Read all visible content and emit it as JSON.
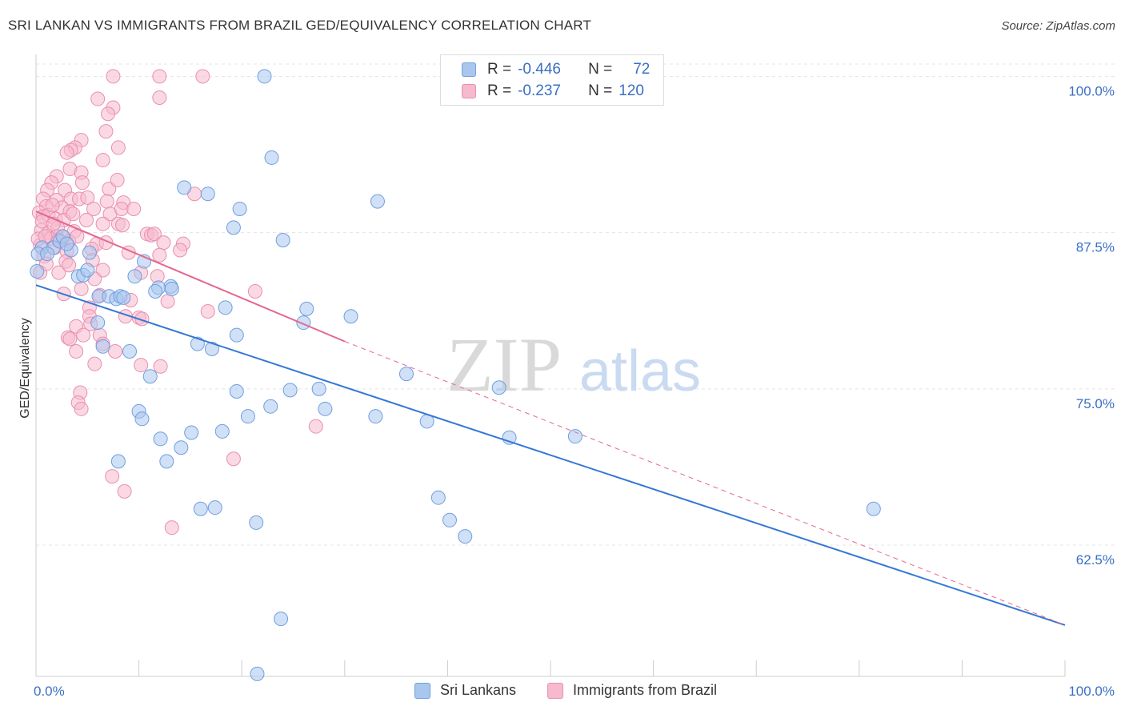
{
  "title": "SRI LANKAN VS IMMIGRANTS FROM BRAZIL GED/EQUIVALENCY CORRELATION CHART",
  "source": "Source: ZipAtlas.com",
  "watermark": {
    "zip": "ZIP",
    "atlas": "atlas"
  },
  "legend": {
    "series1": {
      "r_label": "R =",
      "r_value": "-0.446",
      "n_label": "N =",
      "n_value": "72"
    },
    "series2": {
      "r_label": "R =",
      "r_value": "-0.237",
      "n_label": "N =",
      "n_value": "120"
    }
  },
  "colors": {
    "blue_fill": "#a9c7ee",
    "blue_stroke": "#6f9fe0",
    "blue_line": "#3478d4",
    "pink_fill": "#f6b9cd",
    "pink_stroke": "#ea8fae",
    "pink_line": "#e4678f",
    "grid": "#e4e4e4",
    "tick_label": "#3a6fc4"
  },
  "chart_data": {
    "type": "scatter",
    "title": "SRI LANKAN VS IMMIGRANTS FROM BRAZIL GED/EQUIVALENCY CORRELATION CHART",
    "xlabel": "",
    "ylabel": "GED/Equivalency",
    "xlim": [
      0,
      100
    ],
    "ylim": [
      52.0,
      101.5
    ],
    "x_tick_labels": [
      "0.0%",
      "100.0%"
    ],
    "y_ticks": [
      62.5,
      75.0,
      87.5,
      100.0
    ],
    "y_tick_labels": [
      "62.5%",
      "75.0%",
      "87.5%",
      "100.0%"
    ],
    "grid": true,
    "legend_position": "bottom",
    "series": [
      {
        "name": "Sri Lankans",
        "color": "#a9c7ee",
        "r": -0.446,
        "n": 72,
        "trend": {
          "x0": 0,
          "y0": 83.3,
          "x1": 100,
          "y1": 56.1
        },
        "points": [
          [
            22.2,
            100.0
          ],
          [
            22.9,
            93.5
          ],
          [
            14.4,
            91.1
          ],
          [
            16.7,
            90.6
          ],
          [
            19.8,
            89.4
          ],
          [
            33.2,
            90.0
          ],
          [
            19.2,
            87.9
          ],
          [
            24.0,
            86.9
          ],
          [
            0.6,
            86.3
          ],
          [
            1.7,
            86.3
          ],
          [
            2.3,
            86.8
          ],
          [
            2.6,
            87.2
          ],
          [
            3.4,
            86.1
          ],
          [
            5.2,
            85.9
          ],
          [
            10.5,
            85.2
          ],
          [
            9.6,
            84.0
          ],
          [
            4.1,
            84.0
          ],
          [
            4.6,
            84.1
          ],
          [
            5.0,
            84.5
          ],
          [
            13.1,
            83.2
          ],
          [
            11.9,
            83.1
          ],
          [
            11.6,
            82.8
          ],
          [
            6.1,
            82.4
          ],
          [
            7.1,
            82.4
          ],
          [
            7.8,
            82.2
          ],
          [
            8.2,
            82.4
          ],
          [
            8.5,
            82.3
          ],
          [
            18.4,
            81.5
          ],
          [
            26.3,
            81.4
          ],
          [
            30.6,
            80.8
          ],
          [
            26.0,
            80.3
          ],
          [
            6.0,
            80.3
          ],
          [
            19.5,
            79.3
          ],
          [
            15.7,
            78.6
          ],
          [
            17.1,
            78.2
          ],
          [
            6.5,
            78.4
          ],
          [
            9.1,
            78.0
          ],
          [
            36.0,
            76.2
          ],
          [
            11.1,
            76.0
          ],
          [
            45.0,
            75.1
          ],
          [
            19.5,
            74.8
          ],
          [
            24.7,
            74.9
          ],
          [
            27.5,
            75.0
          ],
          [
            22.8,
            73.6
          ],
          [
            28.1,
            73.4
          ],
          [
            10.0,
            73.2
          ],
          [
            20.6,
            72.8
          ],
          [
            33.0,
            72.8
          ],
          [
            10.3,
            72.6
          ],
          [
            38.0,
            72.4
          ],
          [
            15.1,
            71.5
          ],
          [
            18.1,
            71.6
          ],
          [
            12.1,
            71.0
          ],
          [
            46.0,
            71.1
          ],
          [
            52.4,
            71.2
          ],
          [
            14.1,
            70.3
          ],
          [
            8.0,
            69.2
          ],
          [
            12.7,
            69.2
          ],
          [
            81.4,
            65.4
          ],
          [
            39.1,
            66.3
          ],
          [
            16.0,
            65.4
          ],
          [
            17.4,
            65.5
          ],
          [
            40.2,
            64.5
          ],
          [
            21.4,
            64.3
          ],
          [
            41.7,
            63.2
          ],
          [
            23.8,
            56.6
          ],
          [
            21.5,
            52.2
          ],
          [
            0.2,
            85.8
          ],
          [
            1.1,
            85.8
          ],
          [
            3.0,
            86.6
          ],
          [
            0.1,
            84.4
          ],
          [
            13.2,
            83.0
          ]
        ]
      },
      {
        "name": "Immigrants from Brazil",
        "color": "#f6b9cd",
        "r": -0.237,
        "n": 120,
        "trend": {
          "x0": 0,
          "y0": 89.2,
          "x1": 30,
          "y1": 78.8
        },
        "trend_dashed": {
          "x0": 30,
          "y0": 78.8,
          "x1": 100,
          "y1": 56.1
        },
        "points": [
          [
            7.5,
            100.0
          ],
          [
            12.0,
            100.0
          ],
          [
            16.2,
            100.0
          ],
          [
            6.0,
            98.2
          ],
          [
            12.0,
            98.3
          ],
          [
            7.5,
            97.5
          ],
          [
            7.0,
            97.0
          ],
          [
            6.8,
            95.6
          ],
          [
            8.0,
            94.3
          ],
          [
            4.4,
            94.9
          ],
          [
            3.8,
            94.3
          ],
          [
            3.4,
            94.1
          ],
          [
            3.0,
            93.9
          ],
          [
            6.5,
            93.3
          ],
          [
            3.3,
            92.6
          ],
          [
            4.4,
            92.3
          ],
          [
            2.0,
            92.0
          ],
          [
            1.5,
            91.5
          ],
          [
            4.5,
            91.5
          ],
          [
            1.1,
            90.9
          ],
          [
            2.8,
            90.9
          ],
          [
            7.1,
            91.0
          ],
          [
            0.7,
            90.2
          ],
          [
            2.0,
            90.1
          ],
          [
            3.4,
            90.2
          ],
          [
            4.2,
            90.2
          ],
          [
            5.0,
            90.3
          ],
          [
            6.9,
            90.0
          ],
          [
            8.5,
            89.9
          ],
          [
            1.0,
            89.6
          ],
          [
            2.5,
            89.5
          ],
          [
            3.3,
            89.2
          ],
          [
            5.6,
            89.4
          ],
          [
            7.2,
            89.0
          ],
          [
            8.3,
            89.4
          ],
          [
            0.3,
            89.1
          ],
          [
            0.7,
            88.8
          ],
          [
            1.2,
            88.9
          ],
          [
            1.9,
            88.6
          ],
          [
            2.7,
            88.5
          ],
          [
            4.9,
            88.5
          ],
          [
            6.5,
            88.2
          ],
          [
            8.0,
            88.2
          ],
          [
            8.4,
            88.1
          ],
          [
            0.5,
            87.7
          ],
          [
            1.2,
            87.5
          ],
          [
            2.0,
            87.2
          ],
          [
            2.7,
            87.1
          ],
          [
            3.7,
            87.6
          ],
          [
            10.8,
            87.4
          ],
          [
            11.2,
            87.3
          ],
          [
            11.5,
            87.4
          ],
          [
            1.4,
            87.0
          ],
          [
            3.2,
            86.8
          ],
          [
            5.9,
            86.6
          ],
          [
            6.8,
            86.7
          ],
          [
            14.3,
            86.6
          ],
          [
            12.4,
            86.7
          ],
          [
            0.4,
            86.5
          ],
          [
            1.8,
            86.3
          ],
          [
            3.0,
            86.0
          ],
          [
            5.4,
            86.2
          ],
          [
            14.0,
            86.1
          ],
          [
            9.0,
            85.9
          ],
          [
            12.0,
            85.7
          ],
          [
            0.8,
            85.6
          ],
          [
            2.9,
            85.2
          ],
          [
            6.5,
            84.5
          ],
          [
            10.2,
            84.3
          ],
          [
            11.8,
            84.0
          ],
          [
            0.4,
            84.3
          ],
          [
            2.2,
            84.3
          ],
          [
            5.7,
            83.8
          ],
          [
            4.4,
            83.0
          ],
          [
            21.3,
            82.8
          ],
          [
            2.7,
            82.6
          ],
          [
            6.2,
            82.5
          ],
          [
            9.2,
            82.1
          ],
          [
            12.8,
            82.0
          ],
          [
            5.2,
            81.5
          ],
          [
            16.7,
            81.2
          ],
          [
            5.2,
            80.8
          ],
          [
            8.7,
            80.8
          ],
          [
            10.0,
            80.7
          ],
          [
            10.3,
            80.6
          ],
          [
            5.3,
            80.2
          ],
          [
            3.9,
            80.0
          ],
          [
            4.6,
            79.3
          ],
          [
            6.2,
            79.3
          ],
          [
            3.1,
            79.1
          ],
          [
            3.3,
            79.0
          ],
          [
            6.5,
            78.6
          ],
          [
            3.9,
            78.0
          ],
          [
            7.7,
            78.0
          ],
          [
            5.7,
            77.0
          ],
          [
            10.2,
            76.9
          ],
          [
            12.1,
            76.8
          ],
          [
            4.3,
            74.7
          ],
          [
            4.1,
            73.9
          ],
          [
            4.4,
            73.4
          ],
          [
            27.2,
            72.0
          ],
          [
            19.2,
            69.4
          ],
          [
            7.4,
            68.0
          ],
          [
            8.6,
            66.8
          ],
          [
            13.2,
            63.9
          ],
          [
            3.2,
            84.9
          ],
          [
            2.1,
            87.9
          ],
          [
            1.6,
            89.7
          ],
          [
            0.6,
            88.4
          ],
          [
            2.2,
            86.9
          ],
          [
            4.0,
            87.2
          ],
          [
            1.0,
            85.0
          ],
          [
            0.2,
            87.0
          ],
          [
            1.7,
            88.2
          ],
          [
            3.6,
            89.0
          ],
          [
            0.9,
            87.2
          ],
          [
            5.5,
            85.3
          ],
          [
            9.5,
            89.4
          ],
          [
            7.9,
            91.7
          ],
          [
            15.4,
            90.6
          ]
        ]
      }
    ]
  },
  "bottom_legend": {
    "series1_label": "Sri Lankans",
    "series2_label": "Immigrants from Brazil"
  }
}
